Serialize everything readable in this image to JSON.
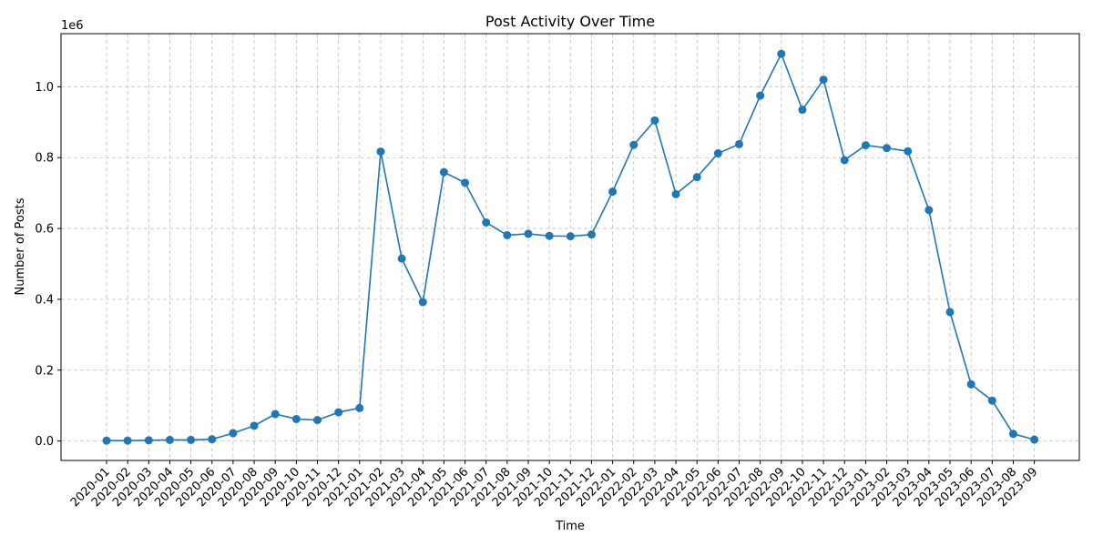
{
  "chart_data": {
    "type": "line",
    "title": "Post Activity Over Time",
    "xlabel": "Time",
    "ylabel": "Number of Posts",
    "y_offset_text": "1e6",
    "y_tick_values": [
      0.0,
      0.2,
      0.4,
      0.6,
      0.8,
      1.0
    ],
    "y_tick_labels": [
      "0.0",
      "0.2",
      "0.4",
      "0.6",
      "0.8",
      "1.0"
    ],
    "ylim": [
      -0.055,
      1.15
    ],
    "grid": true,
    "marker": "circle",
    "color": "#1f77b4",
    "categories": [
      "2020-01",
      "2020-02",
      "2020-03",
      "2020-04",
      "2020-05",
      "2020-06",
      "2020-07",
      "2020-08",
      "2020-09",
      "2020-10",
      "2020-11",
      "2020-12",
      "2021-01",
      "2021-02",
      "2021-03",
      "2021-04",
      "2021-05",
      "2021-06",
      "2021-07",
      "2021-08",
      "2021-09",
      "2021-10",
      "2021-11",
      "2021-12",
      "2022-01",
      "2022-02",
      "2022-03",
      "2022-04",
      "2022-05",
      "2022-06",
      "2022-07",
      "2022-08",
      "2022-09",
      "2022-10",
      "2022-11",
      "2022-12",
      "2023-01",
      "2023-02",
      "2023-03",
      "2023-04",
      "2023-05",
      "2023-06",
      "2023-07",
      "2023-08",
      "2023-09"
    ],
    "values": [
      0.001,
      0.001,
      0.002,
      0.003,
      0.003,
      0.005,
      0.022,
      0.043,
      0.076,
      0.062,
      0.059,
      0.081,
      0.093,
      0.817,
      0.515,
      0.392,
      0.759,
      0.729,
      0.617,
      0.581,
      0.585,
      0.579,
      0.578,
      0.583,
      0.704,
      0.836,
      0.905,
      0.697,
      0.745,
      0.812,
      0.838,
      0.975,
      1.093,
      0.935,
      1.02,
      0.793,
      0.835,
      0.827,
      0.818,
      0.652,
      0.364,
      0.16,
      0.114,
      0.02,
      0.004
    ]
  }
}
